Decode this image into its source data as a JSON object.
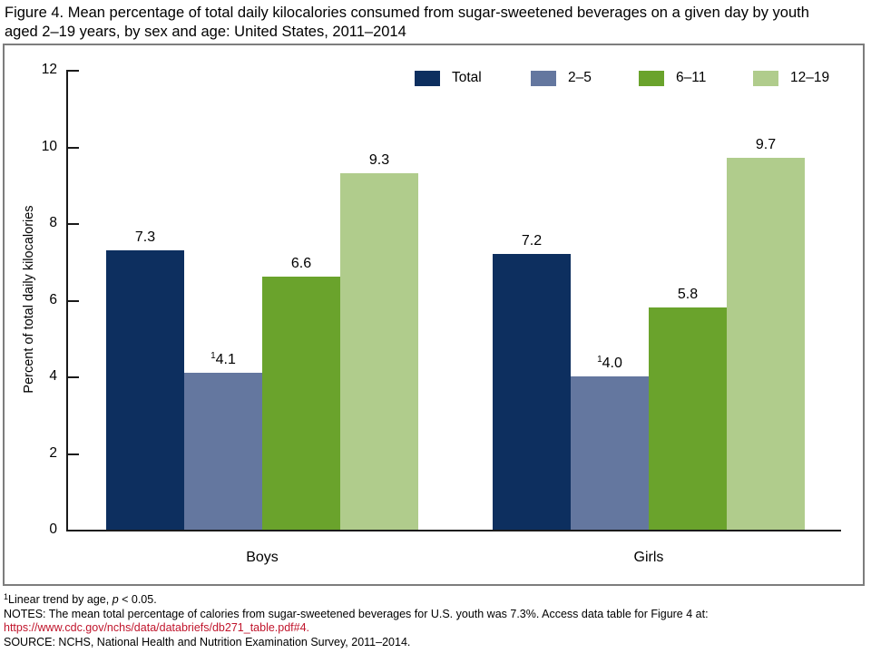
{
  "figure_title": "Figure 4. Mean percentage of total daily kilocalories consumed from sugar-sweetened beverages on a given day by youth\naged 2–19 years, by sex and age: United States, 2011–2014",
  "chart_data": {
    "type": "bar",
    "title": "Figure 4. Mean percentage of total daily kilocalories consumed from sugar-sweetened beverages on a given day by youth aged 2–19 years, by sex and age: United States, 2011–2014",
    "ylabel": "Percent of total daily kilocalories",
    "xlabel": "",
    "ylim": [
      0,
      12
    ],
    "yticks": [
      0,
      2,
      4,
      6,
      8,
      10,
      12
    ],
    "grid": false,
    "legend_position": "top-right",
    "categories": [
      "Boys",
      "Girls"
    ],
    "series": [
      {
        "name": "Total",
        "color": "#0d2f5f",
        "footnote_marker": "",
        "values": [
          7.3,
          7.2
        ]
      },
      {
        "name": "2–5",
        "color": "#64779f",
        "footnote_marker": "1",
        "values": [
          4.1,
          4.0
        ]
      },
      {
        "name": "6–11",
        "color": "#6aa32c",
        "footnote_marker": "",
        "values": [
          6.6,
          5.8
        ]
      },
      {
        "name": "12–19",
        "color": "#b0cc8c",
        "footnote_marker": "",
        "values": [
          9.3,
          9.7
        ]
      }
    ]
  },
  "footnotes": {
    "marker": "1",
    "trend_pre": "Linear trend by age, ",
    "trend_italic": "p",
    "trend_post": " < 0.05.",
    "notes": "NOTES: The mean total percentage of calories from sugar-sweetened beverages for U.S. youth was 7.3%. Access data table for Figure 4 at:",
    "link": "https://www.cdc.gov/nchs/data/databriefs/db271_table.pdf#4.",
    "source": "SOURCE: NCHS, National Health and Nutrition Examination Survey, 2011–2014.",
    "link_color": "#c0152c"
  },
  "colors": {
    "axis": "#1a1a1a",
    "box_border": "#7d7d7d",
    "background": "#ffffff"
  }
}
